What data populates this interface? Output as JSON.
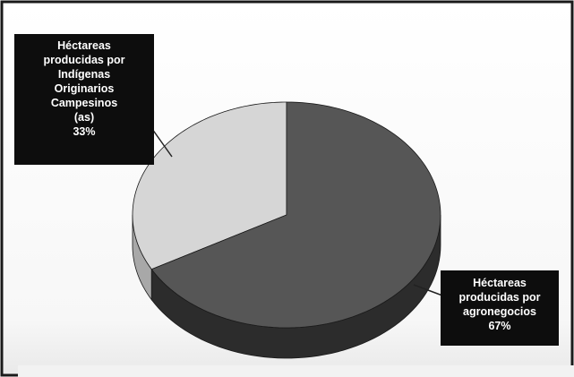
{
  "chart_data": {
    "type": "pie",
    "title": "",
    "legend": "none",
    "slices": [
      {
        "value": 33,
        "color": "#d6d6d6",
        "side_color": "#a8a8a8",
        "label_lines": [
          "Héctareas",
          "producidas por",
          "Indígenas",
          "Originarios",
          "Campesinos",
          "(as)",
          "33%"
        ]
      },
      {
        "value": 67,
        "color": "#565656",
        "side_color": "#2c2c2c",
        "label_lines": [
          "Héctareas",
          "producidas por",
          "agronegocios",
          "67%"
        ]
      }
    ]
  },
  "colors": {
    "background": "#ffffff",
    "panel_bottom": "#efefef",
    "frame": "#1a1a1a",
    "label_box": "#0d0d0d",
    "label_text": "#ffffff"
  }
}
